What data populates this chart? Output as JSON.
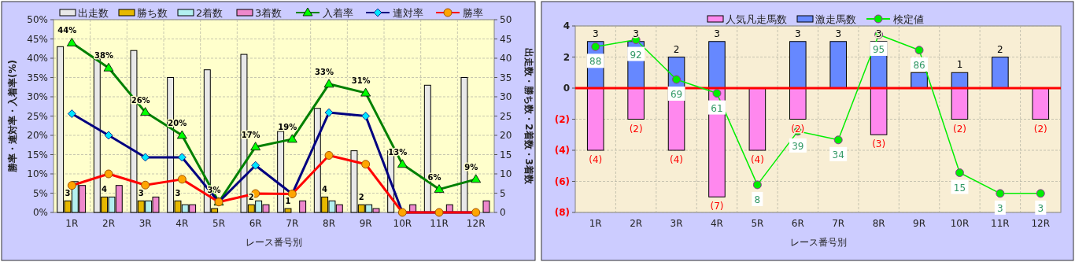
{
  "chart_data": [
    {
      "type": "bar",
      "categories": [
        "1R",
        "2R",
        "3R",
        "4R",
        "5R",
        "6R",
        "7R",
        "8R",
        "9R",
        "10R",
        "11R",
        "12R"
      ],
      "xlabel": "レース番号別",
      "ylabel": "勝率・連対率・入着率(%)",
      "y2label": "出走数・勝ち数・2着数・3着数",
      "ylim": [
        0,
        50
      ],
      "yticks": [
        {
          "value": 0,
          "label": "0%"
        },
        {
          "value": 5,
          "label": "5%"
        },
        {
          "value": 10,
          "label": "10%"
        },
        {
          "value": 15,
          "label": "15%"
        },
        {
          "value": 20,
          "label": "20%"
        },
        {
          "value": 25,
          "label": "25%"
        },
        {
          "value": 30,
          "label": "30%"
        },
        {
          "value": 35,
          "label": "35%"
        },
        {
          "value": 40,
          "label": "40%"
        },
        {
          "value": 45,
          "label": "45%"
        },
        {
          "value": 50,
          "label": "50%"
        }
      ],
      "y2lim": [
        0,
        50
      ],
      "y2ticks": [
        0,
        5,
        10,
        15,
        20,
        25,
        30,
        35,
        40,
        45,
        50
      ],
      "grid": true,
      "legend": "top",
      "series": [
        {
          "name": "出走数",
          "axis": "y2",
          "color": "#e8e8e8",
          "values": [
            43,
            40,
            42,
            35,
            37,
            41,
            21,
            27,
            16,
            16,
            33,
            35
          ]
        },
        {
          "name": "勝ち数",
          "axis": "y2",
          "color": "#e6b800",
          "values": [
            3,
            4,
            3,
            3,
            1,
            2,
            1,
            4,
            2,
            0,
            0,
            0
          ],
          "value_labels": [
            "3",
            "4",
            "3",
            "3",
            null,
            "2",
            "1",
            "4",
            "2",
            null,
            null,
            null
          ]
        },
        {
          "name": "2着数",
          "axis": "y2",
          "color": "#b3f0f0",
          "values": [
            8,
            4,
            3,
            2,
            0,
            3,
            0,
            3,
            2,
            0,
            0,
            0
          ]
        },
        {
          "name": "3着数",
          "axis": "y2",
          "color": "#ee88cc",
          "values": [
            7,
            7,
            4,
            2,
            0,
            2,
            3,
            2,
            1,
            2,
            2,
            3
          ]
        },
        {
          "name": "入着率",
          "type": "line",
          "color": "#008000",
          "marker": "triangle",
          "values": [
            44,
            37.5,
            26,
            20,
            2.7,
            17,
            19,
            33.3,
            31,
            12.5,
            6,
            8.6
          ],
          "value_labels": [
            "44%",
            "38%",
            "26%",
            "20%",
            "3%",
            "17%",
            "19%",
            "33%",
            "31%",
            "13%",
            "6%",
            "9%"
          ]
        },
        {
          "name": "連対率",
          "type": "line",
          "color": "#000080",
          "marker": "diamond",
          "values": [
            25.6,
            20,
            14.3,
            14.3,
            2.7,
            12.2,
            4.8,
            25.9,
            25,
            0,
            0,
            0
          ]
        },
        {
          "name": "勝率",
          "type": "line",
          "color": "#ff0000",
          "marker": "circle",
          "values": [
            7,
            10,
            7.1,
            8.6,
            2.7,
            4.9,
            4.8,
            14.8,
            12.5,
            0,
            0,
            0
          ]
        }
      ]
    },
    {
      "type": "bar",
      "stacked": true,
      "categories": [
        "1R",
        "2R",
        "3R",
        "4R",
        "5R",
        "6R",
        "7R",
        "8R",
        "9R",
        "10R",
        "11R",
        "12R"
      ],
      "xlabel": "レース番号別",
      "ylim": [
        -8,
        4
      ],
      "yticks": [
        {
          "value": -8,
          "label": "(8)"
        },
        {
          "value": -6,
          "label": "(6)"
        },
        {
          "value": -4,
          "label": "(4)"
        },
        {
          "value": -2,
          "label": "(2)"
        },
        0,
        2,
        4
      ],
      "y2lim": [
        -8,
        100
      ],
      "grid": true,
      "legend": "top",
      "ref_lines": [
        {
          "axis": "y",
          "value": 0,
          "color": "#ff0000"
        }
      ],
      "series": [
        {
          "name": "人気凡走馬数",
          "color": "#ff88ee",
          "values": [
            -4,
            -2,
            -4,
            -7,
            -4,
            -2,
            0,
            -3,
            0,
            -2,
            0,
            -2
          ],
          "value_labels": [
            "(4)",
            "(2)",
            "(4)",
            "(7)",
            "(4)",
            "(2)",
            null,
            "(3)",
            null,
            "(2)",
            null,
            "(2)"
          ]
        },
        {
          "name": "激走馬数",
          "color": "#6688ff",
          "values": [
            3,
            3,
            2,
            3,
            0,
            3,
            3,
            3,
            1,
            1,
            2,
            0
          ],
          "value_labels": [
            "3",
            "3",
            "2",
            "3",
            null,
            "3",
            "3",
            "3",
            null,
            "1",
            "2",
            null
          ]
        },
        {
          "name": "検定値",
          "type": "line",
          "axis": "y2",
          "color": "#00ee00",
          "marker": "circle",
          "data_labels": true,
          "values": [
            88,
            92,
            69,
            61,
            8,
            39,
            34,
            95,
            86,
            15,
            3,
            3
          ]
        }
      ]
    }
  ]
}
